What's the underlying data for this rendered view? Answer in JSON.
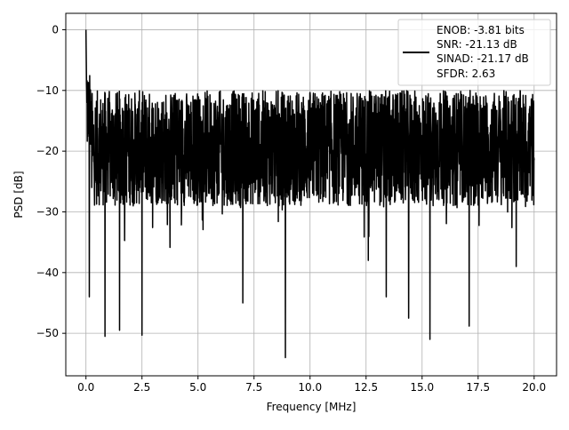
{
  "chart_data": {
    "type": "line",
    "title": "",
    "xlabel": "Frequency [MHz]",
    "ylabel": "PSD [dB]",
    "xlim": [
      -0.9,
      21.0
    ],
    "ylim": [
      -57.0,
      2.7
    ],
    "x_ticks": [
      0.0,
      2.5,
      5.0,
      7.5,
      10.0,
      12.5,
      15.0,
      17.5,
      20.0
    ],
    "x_tick_labels": [
      "0.0",
      "2.5",
      "5.0",
      "7.5",
      "10.0",
      "12.5",
      "15.0",
      "17.5",
      "20.0"
    ],
    "y_ticks": [
      0,
      -10,
      -20,
      -30,
      -40,
      -50
    ],
    "y_tick_labels": [
      "0",
      "−10",
      "−20",
      "−30",
      "−40",
      "−50"
    ],
    "grid": true,
    "legend_position": "top-right",
    "legend_entries": [
      "ENOB: -3.81 bits",
      "SNR: -21.13 dB",
      "SINAD: -21.17 dB",
      "SFDR: 2.63"
    ],
    "series": [
      {
        "color": "#000000",
        "style": "dense noisy spectrum",
        "x_range": [
          0.0,
          20.0
        ],
        "typical_range_db": [
          -29,
          -10
        ],
        "peak": {
          "x": 0.0,
          "y": 0.0
        },
        "notable_dips": [
          {
            "x": 0.15,
            "y": -44
          },
          {
            "x": 0.85,
            "y": -50.5
          },
          {
            "x": 1.5,
            "y": -49.5
          },
          {
            "x": 2.5,
            "y": -50.3
          },
          {
            "x": 7.0,
            "y": -45
          },
          {
            "x": 8.9,
            "y": -54
          },
          {
            "x": 12.6,
            "y": -38
          },
          {
            "x": 13.4,
            "y": -44
          },
          {
            "x": 14.4,
            "y": -47.5
          },
          {
            "x": 15.35,
            "y": -51
          },
          {
            "x": 17.1,
            "y": -48.8
          },
          {
            "x": 19.2,
            "y": -39
          }
        ]
      }
    ]
  }
}
